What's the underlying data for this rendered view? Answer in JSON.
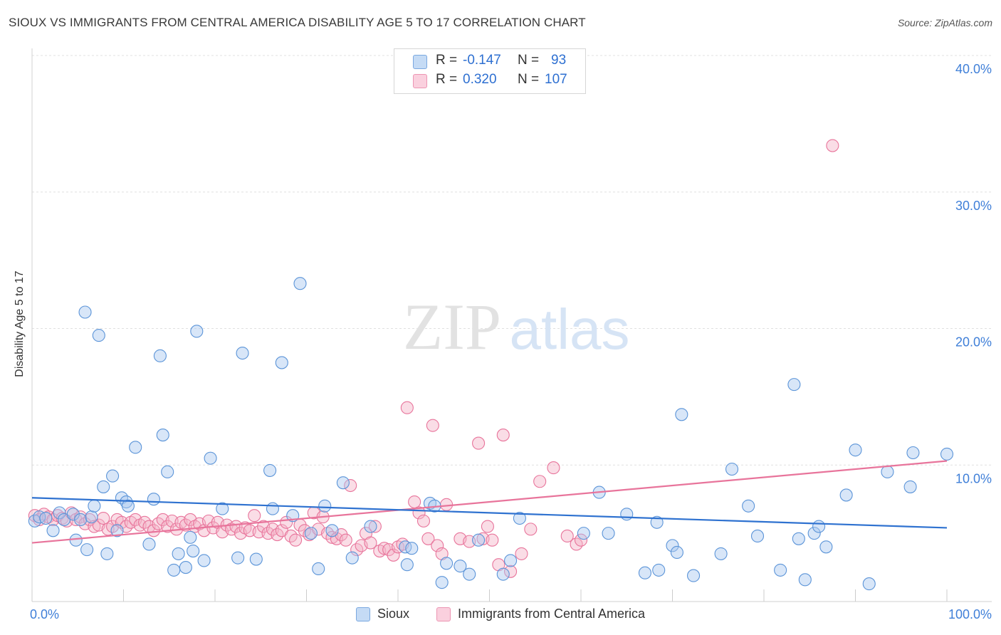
{
  "header": {
    "title": "SIOUX VS IMMIGRANTS FROM CENTRAL AMERICA DISABILITY AGE 5 TO 17 CORRELATION CHART",
    "source": "Source: ZipAtlas.com"
  },
  "watermark": {
    "zip": "ZIP",
    "atlas": "atlas"
  },
  "legend": {
    "rows": [
      {
        "r_label": "R =",
        "r_value": "-0.147",
        "n_label": "N =",
        "n_value": "93",
        "color": "#a8c8f0"
      },
      {
        "r_label": "R =",
        "r_value": "0.320",
        "n_label": "N =",
        "n_value": "107",
        "color": "#f5b3c8"
      }
    ]
  },
  "bottom_legend": [
    {
      "label": "Sioux",
      "color": "#a8c8f0"
    },
    {
      "label": "Immigrants from Central America",
      "color": "#f5b3c8"
    }
  ],
  "chart_data": {
    "type": "scatter",
    "xlabel": "",
    "ylabel": "Disability Age 5 to 17",
    "xlim": [
      0,
      100
    ],
    "ylim": [
      0,
      40
    ],
    "x_tick_labels": [
      "0.0%",
      "100.0%"
    ],
    "y_tick_labels": [
      "10.0%",
      "20.0%",
      "30.0%",
      "40.0%"
    ],
    "y_ticks": [
      10,
      20,
      30,
      40
    ],
    "grid": true,
    "colors": {
      "sioux": "#5b94d8",
      "sioux_fill": "#a8c8f0",
      "central": "#e8749b",
      "central_fill": "#f5b3c8",
      "axis_text": "#3f7fd8"
    },
    "series": [
      {
        "name": "Sioux",
        "trend": {
          "x": [
            0,
            100
          ],
          "y": [
            7.6,
            5.4
          ]
        },
        "points": [
          [
            0.3,
            5.9
          ],
          [
            0.8,
            6.2
          ],
          [
            1.5,
            6.1
          ],
          [
            2.3,
            5.2
          ],
          [
            3.0,
            6.5
          ],
          [
            3.5,
            6.0
          ],
          [
            4.5,
            6.4
          ],
          [
            4.8,
            4.5
          ],
          [
            5.3,
            6.0
          ],
          [
            5.8,
            21.2
          ],
          [
            6.0,
            3.8
          ],
          [
            6.5,
            6.2
          ],
          [
            6.8,
            7.0
          ],
          [
            7.3,
            19.5
          ],
          [
            7.8,
            8.4
          ],
          [
            8.2,
            3.5
          ],
          [
            8.8,
            9.2
          ],
          [
            9.3,
            5.2
          ],
          [
            9.8,
            7.6
          ],
          [
            10.3,
            7.3
          ],
          [
            10.5,
            7.0
          ],
          [
            11.3,
            11.3
          ],
          [
            12.8,
            4.2
          ],
          [
            13.3,
            7.5
          ],
          [
            14.0,
            18.0
          ],
          [
            14.3,
            12.2
          ],
          [
            14.8,
            9.5
          ],
          [
            15.5,
            2.3
          ],
          [
            16.0,
            3.5
          ],
          [
            16.8,
            2.5
          ],
          [
            17.3,
            4.7
          ],
          [
            17.6,
            3.7
          ],
          [
            18.0,
            19.8
          ],
          [
            18.8,
            3.0
          ],
          [
            19.5,
            10.5
          ],
          [
            20.8,
            6.8
          ],
          [
            22.5,
            3.2
          ],
          [
            23.0,
            18.2
          ],
          [
            24.5,
            3.1
          ],
          [
            26.0,
            9.6
          ],
          [
            26.3,
            6.8
          ],
          [
            27.3,
            17.5
          ],
          [
            28.5,
            6.3
          ],
          [
            29.3,
            23.3
          ],
          [
            30.5,
            5.0
          ],
          [
            31.3,
            2.4
          ],
          [
            32.0,
            7.0
          ],
          [
            32.8,
            5.2
          ],
          [
            34.0,
            8.7
          ],
          [
            35.0,
            3.2
          ],
          [
            37.0,
            5.5
          ],
          [
            40.8,
            4.0
          ],
          [
            41.0,
            2.7
          ],
          [
            41.5,
            3.9
          ],
          [
            43.5,
            7.2
          ],
          [
            44.0,
            7.0
          ],
          [
            44.8,
            1.4
          ],
          [
            45.3,
            2.8
          ],
          [
            46.8,
            2.6
          ],
          [
            47.8,
            2.0
          ],
          [
            48.8,
            4.5
          ],
          [
            51.5,
            2.0
          ],
          [
            52.3,
            3.0
          ],
          [
            53.3,
            6.1
          ],
          [
            60.3,
            5.0
          ],
          [
            62.0,
            8.0
          ],
          [
            63.0,
            5.0
          ],
          [
            65.0,
            6.4
          ],
          [
            67.0,
            2.1
          ],
          [
            68.3,
            5.8
          ],
          [
            68.5,
            2.3
          ],
          [
            70.0,
            4.1
          ],
          [
            70.5,
            3.6
          ],
          [
            71.0,
            13.7
          ],
          [
            72.3,
            1.9
          ],
          [
            75.3,
            3.5
          ],
          [
            76.5,
            9.7
          ],
          [
            78.3,
            7.0
          ],
          [
            79.3,
            4.8
          ],
          [
            81.8,
            2.3
          ],
          [
            83.3,
            15.9
          ],
          [
            83.8,
            4.6
          ],
          [
            84.5,
            1.6
          ],
          [
            85.5,
            5.0
          ],
          [
            86.0,
            5.5
          ],
          [
            86.8,
            4.0
          ],
          [
            89.0,
            7.8
          ],
          [
            90.0,
            11.1
          ],
          [
            91.5,
            1.3
          ],
          [
            93.5,
            9.5
          ],
          [
            96.0,
            8.4
          ],
          [
            96.3,
            10.9
          ],
          [
            100.0,
            10.8
          ]
        ]
      },
      {
        "name": "Immigrants from Central America",
        "trend": {
          "x": [
            0,
            100
          ],
          "y": [
            4.3,
            10.3
          ]
        },
        "points": [
          [
            0.3,
            6.3
          ],
          [
            0.8,
            6.0
          ],
          [
            1.3,
            6.4
          ],
          [
            1.8,
            6.2
          ],
          [
            2.3,
            6.0
          ],
          [
            2.8,
            6.3
          ],
          [
            3.3,
            6.1
          ],
          [
            3.8,
            5.9
          ],
          [
            4.3,
            6.5
          ],
          [
            4.8,
            6.0
          ],
          [
            5.3,
            6.2
          ],
          [
            5.8,
            5.7
          ],
          [
            6.3,
            6.0
          ],
          [
            6.8,
            5.5
          ],
          [
            7.3,
            5.6
          ],
          [
            7.8,
            6.1
          ],
          [
            8.3,
            5.3
          ],
          [
            8.8,
            5.5
          ],
          [
            9.3,
            6.0
          ],
          [
            9.8,
            5.8
          ],
          [
            10.3,
            5.5
          ],
          [
            10.8,
            5.8
          ],
          [
            11.3,
            6.0
          ],
          [
            11.8,
            5.6
          ],
          [
            12.3,
            5.8
          ],
          [
            12.8,
            5.5
          ],
          [
            13.3,
            5.2
          ],
          [
            13.8,
            5.7
          ],
          [
            14.3,
            6.0
          ],
          [
            14.8,
            5.5
          ],
          [
            15.3,
            5.9
          ],
          [
            15.8,
            5.3
          ],
          [
            16.3,
            5.8
          ],
          [
            16.8,
            5.6
          ],
          [
            17.3,
            6.0
          ],
          [
            17.8,
            5.5
          ],
          [
            18.3,
            5.7
          ],
          [
            18.8,
            5.2
          ],
          [
            19.3,
            5.9
          ],
          [
            19.8,
            5.4
          ],
          [
            20.3,
            5.8
          ],
          [
            20.8,
            5.1
          ],
          [
            21.3,
            5.6
          ],
          [
            21.8,
            5.3
          ],
          [
            22.3,
            5.5
          ],
          [
            22.8,
            5.0
          ],
          [
            23.3,
            5.4
          ],
          [
            23.8,
            5.2
          ],
          [
            24.3,
            6.3
          ],
          [
            24.8,
            5.1
          ],
          [
            25.3,
            5.5
          ],
          [
            25.8,
            5.0
          ],
          [
            26.3,
            5.3
          ],
          [
            26.8,
            4.9
          ],
          [
            27.3,
            5.2
          ],
          [
            27.8,
            5.8
          ],
          [
            28.3,
            4.8
          ],
          [
            28.8,
            4.5
          ],
          [
            29.3,
            5.6
          ],
          [
            29.8,
            5.2
          ],
          [
            30.3,
            4.9
          ],
          [
            30.8,
            6.5
          ],
          [
            31.3,
            5.3
          ],
          [
            31.8,
            6.2
          ],
          [
            32.3,
            5.0
          ],
          [
            32.8,
            4.7
          ],
          [
            33.3,
            4.6
          ],
          [
            33.8,
            4.9
          ],
          [
            34.3,
            4.5
          ],
          [
            34.8,
            8.5
          ],
          [
            35.5,
            3.8
          ],
          [
            36.0,
            4.1
          ],
          [
            36.5,
            5.0
          ],
          [
            37.0,
            4.3
          ],
          [
            37.5,
            5.5
          ],
          [
            38.0,
            3.7
          ],
          [
            38.5,
            3.9
          ],
          [
            39.0,
            3.8
          ],
          [
            39.5,
            3.4
          ],
          [
            40.0,
            4.0
          ],
          [
            40.5,
            4.2
          ],
          [
            41.0,
            14.2
          ],
          [
            41.8,
            7.3
          ],
          [
            42.3,
            6.5
          ],
          [
            42.8,
            5.9
          ],
          [
            43.3,
            4.6
          ],
          [
            43.8,
            12.9
          ],
          [
            44.3,
            4.1
          ],
          [
            44.8,
            3.5
          ],
          [
            45.3,
            7.1
          ],
          [
            46.8,
            4.6
          ],
          [
            47.8,
            4.4
          ],
          [
            48.8,
            11.6
          ],
          [
            49.3,
            4.6
          ],
          [
            49.8,
            5.5
          ],
          [
            50.3,
            4.5
          ],
          [
            51.0,
            2.7
          ],
          [
            51.5,
            12.2
          ],
          [
            52.3,
            2.2
          ],
          [
            53.5,
            3.5
          ],
          [
            54.5,
            5.3
          ],
          [
            55.5,
            8.8
          ],
          [
            57.0,
            9.8
          ],
          [
            58.5,
            4.8
          ],
          [
            59.5,
            4.2
          ],
          [
            60.0,
            4.5
          ],
          [
            87.5,
            33.4
          ]
        ]
      }
    ]
  }
}
